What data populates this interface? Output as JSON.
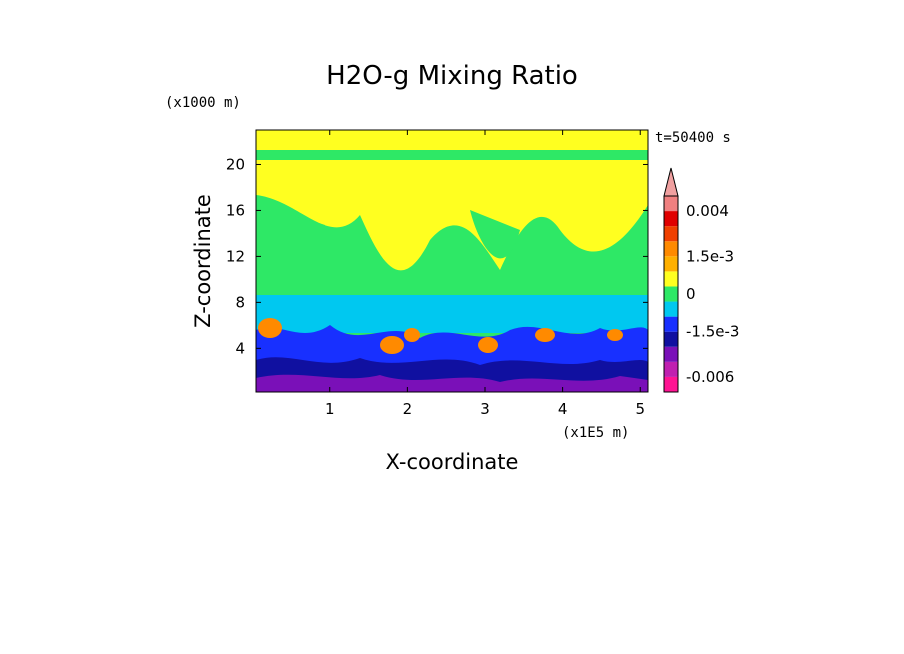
{
  "chart_data": {
    "type": "heatmap",
    "title": "H2O-g Mixing Ratio",
    "xlabel": "X-coordinate",
    "ylabel": "Z-coordinate",
    "x_unit": "(x1E5 m)",
    "y_unit": "(x1000 m)",
    "time_label": "t=50400 s",
    "xlim": [
      0.05,
      5.1
    ],
    "ylim": [
      0.2,
      23
    ],
    "x_ticks": [
      1,
      2,
      3,
      4,
      5
    ],
    "x_tick_labels": [
      "1",
      "2",
      "3",
      "4",
      "5"
    ],
    "y_ticks": [
      4,
      8,
      12,
      16,
      20
    ],
    "y_tick_labels": [
      "4",
      "8",
      "12",
      "16",
      "20"
    ],
    "colorbar": {
      "labels": [
        "0.004",
        "1.5e-3",
        "0",
        "-1.5e-3",
        "-0.006"
      ],
      "label_values": [
        0.004,
        0.0015,
        0,
        -0.0015,
        -0.006
      ],
      "extend": "max",
      "levels": [
        {
          "color": "#ff1493",
          "value": -0.009
        },
        {
          "color": "#c020b0",
          "value": -0.006
        },
        {
          "color": "#7a10b8",
          "value": -0.0035
        },
        {
          "color": "#1010a0",
          "value": -0.0022
        },
        {
          "color": "#1830ff",
          "value": -0.0015
        },
        {
          "color": "#00c8f0",
          "value": -0.0008
        },
        {
          "color": "#2ee866",
          "value": -0.0002
        },
        {
          "color": "#ffff20",
          "value": 0.0002
        },
        {
          "color": "#ffb000",
          "value": 0.0008
        },
        {
          "color": "#ff8a00",
          "value": 0.0015
        },
        {
          "color": "#f04000",
          "value": 0.0022
        },
        {
          "color": "#e00000",
          "value": 0.003
        },
        {
          "color": "#f08080",
          "value": 0.004
        },
        {
          "color": "#f0a0a0",
          "value": 0.005
        }
      ]
    },
    "field_bands": [
      {
        "z_range": [
          0.2,
          2.5
        ],
        "dominant": "dark blue / purple",
        "value": -0.003
      },
      {
        "z_range": [
          2.5,
          5.5
        ],
        "dominant": "blue / cyan / orange",
        "value": -0.0008
      },
      {
        "z_range": [
          5.5,
          9
        ],
        "dominant": "cyan / green",
        "value": -0.0004
      },
      {
        "z_range": [
          9,
          19
        ],
        "dominant": "green / yellow",
        "value": 0.0
      },
      {
        "z_range": [
          19,
          23
        ],
        "dominant": "yellow / green",
        "value": 0.0002
      }
    ]
  }
}
